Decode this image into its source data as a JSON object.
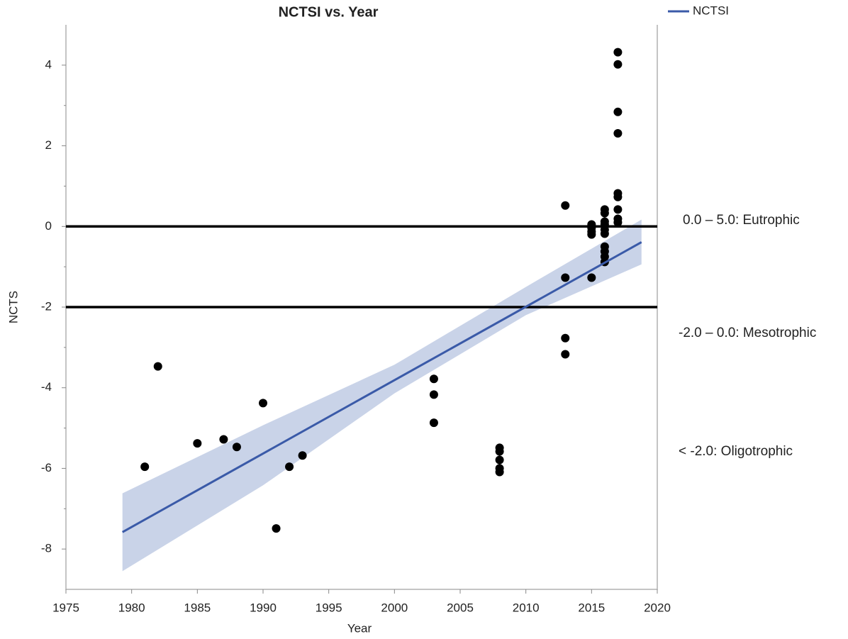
{
  "chart_data": {
    "type": "scatter",
    "title": "NCTSI vs. Year",
    "x_label": "Year",
    "y_label": "NCTS",
    "xlim": [
      1975,
      2020
    ],
    "xticks": [
      1975,
      1980,
      1985,
      1990,
      1995,
      2000,
      2005,
      2010,
      2015,
      2020
    ],
    "ylim": [
      -9,
      5
    ],
    "yticks": [
      -8,
      -6,
      -4,
      -2,
      0,
      2,
      4
    ],
    "yminorticks": [
      -7,
      -5,
      -3,
      -1,
      1,
      3
    ],
    "grid": false,
    "legend": "top-right",
    "series": [
      {
        "type": "scatter",
        "color": "#000000",
        "x": [
          1981,
          1982,
          1985,
          1987,
          1988,
          1990,
          1991,
          1992,
          1993,
          2003,
          2003,
          2003,
          2008,
          2008,
          2008,
          2008,
          2008,
          2013,
          2013,
          2013,
          2013,
          2015,
          2015,
          2015,
          2015,
          2015,
          2016,
          2016,
          2016,
          2016,
          2016,
          2016,
          2016,
          2016,
          2016,
          2016,
          2017,
          2017,
          2017,
          2017,
          2017,
          2017,
          2017,
          2017,
          2017
        ],
        "values": [
          -5.96,
          -3.47,
          -5.38,
          -5.28,
          -5.47,
          -4.38,
          -7.49,
          -5.96,
          -5.68,
          -3.78,
          -4.17,
          -4.87,
          -5.49,
          -5.58,
          -5.79,
          -6.0,
          -6.09,
          0.52,
          -1.27,
          -2.77,
          -3.17,
          0.05,
          -0.04,
          -0.13,
          -0.2,
          -1.27,
          0.42,
          0.33,
          0.12,
          0.05,
          -0.08,
          -0.18,
          -0.5,
          -0.62,
          -0.75,
          -0.88,
          4.32,
          4.02,
          2.84,
          2.31,
          0.82,
          0.73,
          0.42,
          0.19,
          0.1
        ]
      },
      {
        "type": "line",
        "name": "NCTSI",
        "color": "#3a5aa8",
        "x": [
          1979.3,
          2018.8
        ],
        "values": [
          -7.58,
          -0.39
        ]
      }
    ],
    "band": {
      "color": "#c9d3e8",
      "x": [
        1979.3,
        1990,
        2000,
        2010,
        2018.8
      ],
      "upper": [
        -6.62,
        -4.93,
        -3.43,
        -1.5,
        0.17
      ],
      "lower": [
        -8.55,
        -6.42,
        -4.14,
        -2.2,
        -0.94
      ]
    },
    "hlines": [
      0,
      -2
    ],
    "annotations": [
      "0.0 – 5.0: Eutrophic",
      "-2.0 – 0.0: Mesotrophic",
      "< -2.0: Oligotrophic"
    ]
  }
}
